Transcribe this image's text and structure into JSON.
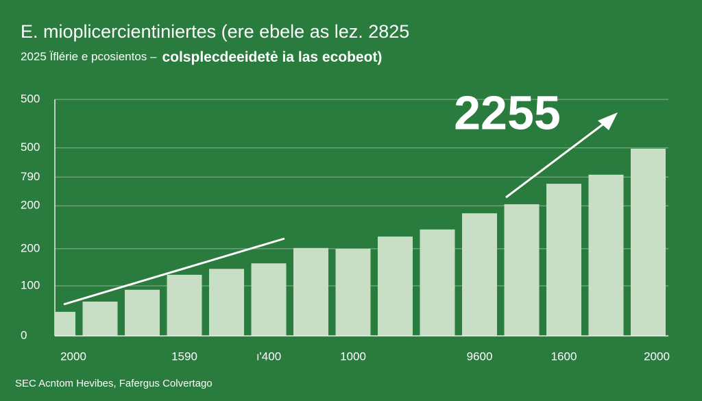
{
  "chart_data": {
    "type": "bar",
    "title": "E.   mioplicercientiniertes (ere ebele as lez. 2825",
    "subtitle": "2025 Ïflérie e pcosientos  –",
    "subtitle_emphasis": "colsplecdeeidetė ia las ecobeot)",
    "annotation": "2255",
    "source": "SEC Acntom Hevibes, Fafergus Colvertago",
    "categories": [
      "2000",
      null,
      null,
      "1590",
      null,
      "ı'400",
      null,
      "1000",
      null,
      null,
      "9600",
      null,
      "1600",
      null,
      "2000"
    ],
    "values": [
      61,
      87,
      117,
      155,
      170,
      184,
      223,
      221,
      252,
      270,
      311,
      334,
      386,
      409,
      475
    ],
    "color": "#c8dfc6",
    "ylim": [
      0,
      600
    ],
    "yticks": [
      0,
      {
        "value": 127,
        "label": "100"
      },
      {
        "value": 221,
        "label": "200"
      },
      {
        "value": 330,
        "label": "200"
      },
      {
        "value": 403,
        "label": "790"
      },
      {
        "value": 477,
        "label": "500"
      },
      {
        "value": 600,
        "label": "500"
      }
    ],
    "grid": true
  }
}
